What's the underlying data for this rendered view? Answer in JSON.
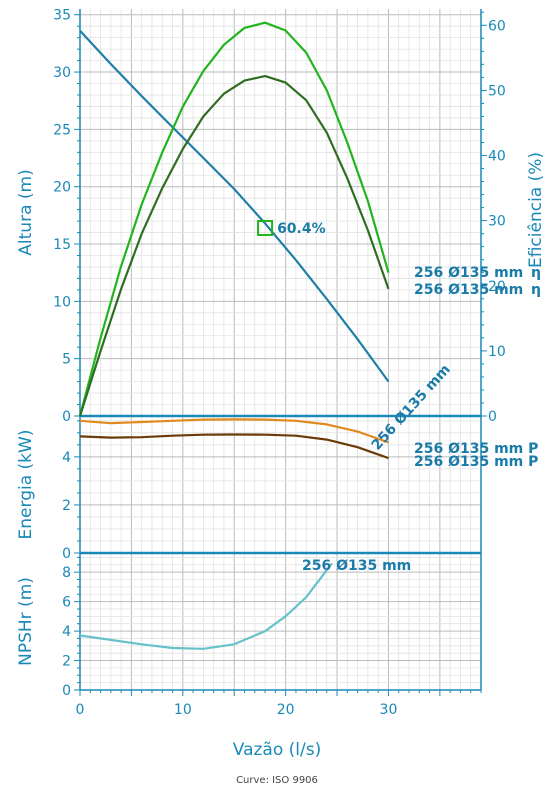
{
  "footer": "Curve: ISO 9906",
  "colors": {
    "axis": "#1a89b8",
    "head": "#1f7fa8",
    "eff_high": "#22b41e",
    "eff_low": "#2f6e22",
    "power_high": "#e08a1e",
    "power_low": "#6b3a08",
    "npsh": "#66c2c9",
    "grid_major": "#bbbbbb",
    "grid_minor": "#e2e2e2"
  },
  "chart_data": [
    {
      "type": "line",
      "panel": "head_efficiency",
      "xlabel": "Vazão (l/s)",
      "ylabel": "Altura (m)",
      "y2label": "Eficiência (%)",
      "xlim": [
        0,
        39
      ],
      "xticks": [
        0,
        10,
        20,
        30
      ],
      "ylim": [
        0,
        35.5
      ],
      "yticks": [
        0,
        5,
        10,
        15,
        20,
        25,
        30,
        35
      ],
      "y2lim": [
        0,
        62.5
      ],
      "y2ticks": [
        0,
        10,
        20,
        30,
        40,
        50,
        60
      ],
      "series": [
        {
          "name": "256 Ø135 mm",
          "axis": "left",
          "color_key": "head",
          "x": [
            0,
            3,
            6,
            9,
            12,
            15,
            18,
            21,
            24,
            27,
            30
          ],
          "y": [
            33.6,
            30.7,
            27.9,
            25.2,
            22.5,
            19.8,
            16.8,
            13.6,
            10.2,
            6.7,
            3.0
          ]
        },
        {
          "name": "256 Ø135 mm η",
          "axis": "right",
          "color_key": "eff_high",
          "x": [
            0,
            2,
            4,
            6,
            8,
            10,
            12,
            14,
            16,
            18,
            20,
            22,
            24,
            26,
            28,
            30
          ],
          "y": [
            0,
            12,
            23,
            32.5,
            40.5,
            47.5,
            53,
            57,
            59.6,
            60.4,
            59.2,
            55.8,
            50,
            42,
            33,
            22
          ]
        },
        {
          "name": "256 Ø135 mm η",
          "axis": "right",
          "color_key": "eff_low",
          "x": [
            0,
            2,
            4,
            6,
            8,
            10,
            12,
            14,
            16,
            18,
            20,
            22,
            24,
            26,
            28,
            30
          ],
          "y": [
            0,
            10,
            19.5,
            28,
            35,
            41,
            46,
            49.5,
            51.5,
            52.2,
            51.2,
            48.5,
            43.5,
            36.5,
            28.5,
            19.5
          ]
        }
      ],
      "annotations": [
        {
          "text": "60.4%",
          "x": 18,
          "y": 16.4
        },
        {
          "text": "256 Ø135 mm",
          "x": 32.5,
          "y": 0.5,
          "angle": -48
        }
      ],
      "series_labels": [
        "256 Ø135 mm",
        "256 Ø135 mm",
        "η",
        "η"
      ]
    },
    {
      "type": "line",
      "panel": "power",
      "ylabel": "Energia (kW)",
      "ylim": [
        0,
        5.7
      ],
      "yticks": [
        0,
        2,
        4
      ],
      "series": [
        {
          "name": "256 Ø135 mm P1",
          "color_key": "power_high",
          "x": [
            0,
            3,
            6,
            9,
            12,
            15,
            18,
            21,
            24,
            27,
            30
          ],
          "y": [
            5.5,
            5.4,
            5.45,
            5.5,
            5.55,
            5.56,
            5.55,
            5.5,
            5.35,
            5.05,
            4.6
          ]
        },
        {
          "name": "256 Ø135 mm P2",
          "color_key": "power_low",
          "x": [
            0,
            3,
            6,
            9,
            12,
            15,
            18,
            21,
            24,
            27,
            30
          ],
          "y": [
            4.85,
            4.8,
            4.82,
            4.88,
            4.92,
            4.93,
            4.92,
            4.88,
            4.72,
            4.4,
            3.95
          ]
        }
      ],
      "series_labels": [
        "256 Ø135 mm P",
        "256 Ø135 mm P"
      ]
    },
    {
      "type": "line",
      "panel": "npsh",
      "ylabel": "NPSHr (m)",
      "ylim": [
        0,
        9.3
      ],
      "yticks": [
        0,
        2,
        4,
        6,
        8
      ],
      "series": [
        {
          "name": "256 Ø135 mm",
          "color_key": "npsh",
          "x": [
            0,
            3,
            6,
            9,
            12,
            15,
            18,
            20,
            22,
            24.5
          ],
          "y": [
            3.7,
            3.4,
            3.1,
            2.85,
            2.8,
            3.1,
            4.0,
            5.0,
            6.3,
            8.6
          ]
        }
      ],
      "series_labels": [
        "256 Ø135 mm"
      ]
    }
  ]
}
